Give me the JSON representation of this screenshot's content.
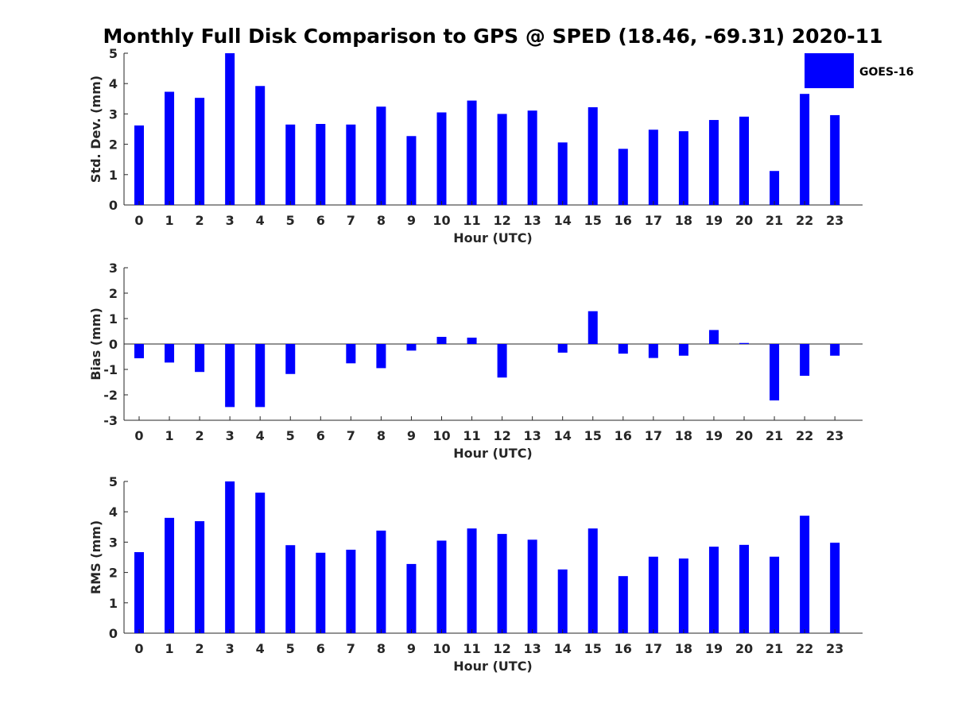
{
  "chart_data": {
    "type": "bar",
    "title": "Monthly Full Disk Comparison to GPS @ SPED (18.46, -69.31) 2020-11",
    "legend": {
      "label": "GOES-16",
      "color": "#0000ff",
      "placement": "top-right"
    },
    "bar_color": "#0000ff",
    "categories": [
      "0",
      "1",
      "2",
      "3",
      "4",
      "5",
      "6",
      "7",
      "8",
      "9",
      "10",
      "11",
      "12",
      "13",
      "14",
      "15",
      "16",
      "17",
      "18",
      "19",
      "20",
      "21",
      "22",
      "23"
    ],
    "panels": [
      {
        "name": "std-dev",
        "xlabel": "Hour (UTC)",
        "ylabel": "Std. Dev. (mm)",
        "ylim": [
          0,
          5
        ],
        "yticks": [
          "0",
          "1",
          "2",
          "3",
          "4",
          "5"
        ],
        "values": [
          2.62,
          3.73,
          3.53,
          5.0,
          3.92,
          2.65,
          2.67,
          2.65,
          3.24,
          2.27,
          3.05,
          3.44,
          3.0,
          3.11,
          2.06,
          3.22,
          1.85,
          2.48,
          2.43,
          2.8,
          2.91,
          1.12,
          3.66,
          2.96
        ]
      },
      {
        "name": "bias",
        "xlabel": "Hour (UTC)",
        "ylabel": "Bias (mm)",
        "ylim": [
          -3,
          3
        ],
        "yticks": [
          "-3",
          "-2",
          "-1",
          "0",
          "1",
          "2",
          "3"
        ],
        "values": [
          -0.56,
          -0.73,
          -1.1,
          -2.48,
          -2.48,
          -1.18,
          0.0,
          -0.76,
          -0.95,
          -0.26,
          0.28,
          0.25,
          -1.32,
          0.0,
          -0.34,
          1.29,
          -0.38,
          -0.55,
          -0.46,
          0.55,
          0.04,
          -2.22,
          -1.25,
          -0.46
        ]
      },
      {
        "name": "rms",
        "xlabel": "Hour (UTC)",
        "ylabel": "RMS (mm)",
        "ylim": [
          0,
          5
        ],
        "yticks": [
          "0",
          "1",
          "2",
          "3",
          "4",
          "5"
        ],
        "values": [
          2.67,
          3.8,
          3.69,
          5.0,
          4.63,
          2.9,
          2.65,
          2.75,
          3.38,
          2.28,
          3.05,
          3.45,
          3.27,
          3.08,
          2.1,
          3.45,
          1.88,
          2.52,
          2.46,
          2.85,
          2.91,
          2.52,
          3.87,
          2.98
        ]
      }
    ]
  }
}
